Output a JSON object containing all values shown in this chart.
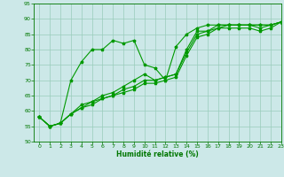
{
  "xlabel": "Humidité relative (%)",
  "xlim": [
    -0.5,
    23
  ],
  "ylim": [
    50,
    95
  ],
  "yticks": [
    50,
    55,
    60,
    65,
    70,
    75,
    80,
    85,
    90,
    95
  ],
  "xticks": [
    0,
    1,
    2,
    3,
    4,
    5,
    6,
    7,
    8,
    9,
    10,
    11,
    12,
    13,
    14,
    15,
    16,
    17,
    18,
    19,
    20,
    21,
    22,
    23
  ],
  "background_color": "#cce8e8",
  "grid_color": "#99ccbb",
  "line_color": "#009900",
  "series": [
    [
      58,
      55,
      56,
      70,
      76,
      80,
      80,
      83,
      82,
      83,
      75,
      74,
      70,
      81,
      85,
      87,
      88,
      88,
      88,
      88,
      88,
      88,
      88,
      89
    ],
    [
      58,
      55,
      56,
      59,
      62,
      63,
      65,
      66,
      68,
      70,
      72,
      70,
      71,
      72,
      80,
      86,
      86,
      88,
      88,
      88,
      88,
      88,
      88,
      89
    ],
    [
      58,
      55,
      56,
      59,
      61,
      63,
      64,
      65,
      67,
      68,
      70,
      70,
      71,
      72,
      79,
      85,
      86,
      87,
      88,
      88,
      88,
      87,
      88,
      89
    ],
    [
      58,
      55,
      56,
      59,
      61,
      62,
      64,
      65,
      66,
      67,
      69,
      69,
      70,
      71,
      78,
      84,
      85,
      87,
      87,
      87,
      87,
      86,
      87,
      89
    ]
  ]
}
